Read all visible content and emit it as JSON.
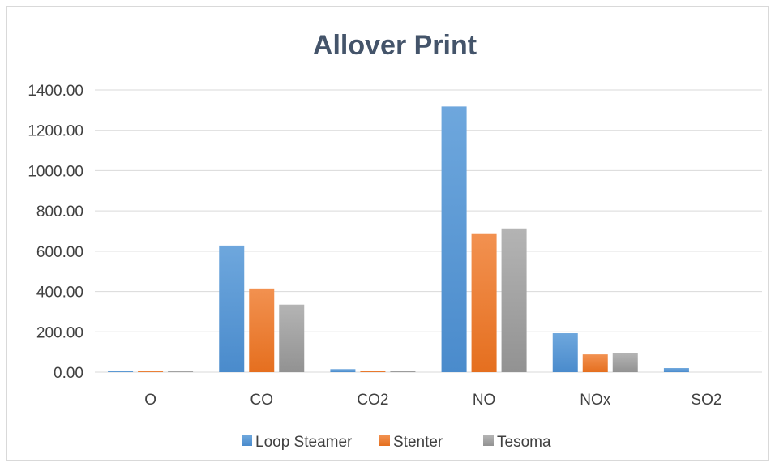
{
  "chart_data": {
    "type": "bar",
    "title": "Allover Print",
    "xlabel": "",
    "ylabel": "",
    "categories": [
      "O",
      "CO",
      "CO2",
      "NO",
      "NOx",
      "SO2"
    ],
    "series": [
      {
        "name": "Loop Steamer",
        "values": [
          2,
          628,
          15,
          1318,
          193,
          20
        ]
      },
      {
        "name": "Stenter",
        "values": [
          1,
          415,
          7,
          685,
          88,
          0
        ]
      },
      {
        "name": "Tesoma",
        "values": [
          1,
          335,
          7,
          713,
          93,
          0
        ]
      }
    ],
    "ylim": [
      0,
      1400
    ],
    "yticks": [
      "0.00",
      "200.00",
      "400.00",
      "600.00",
      "800.00",
      "1000.00",
      "1200.00",
      "1400.00"
    ],
    "ytick_values": [
      0,
      200,
      400,
      600,
      800,
      1000,
      1200,
      1400
    ],
    "grid": true,
    "legend_position": "bottom",
    "colors": {
      "Loop Steamer": "#5b9bd5",
      "Stenter": "#ed7d31",
      "Tesoma": "#a5a5a5"
    }
  }
}
